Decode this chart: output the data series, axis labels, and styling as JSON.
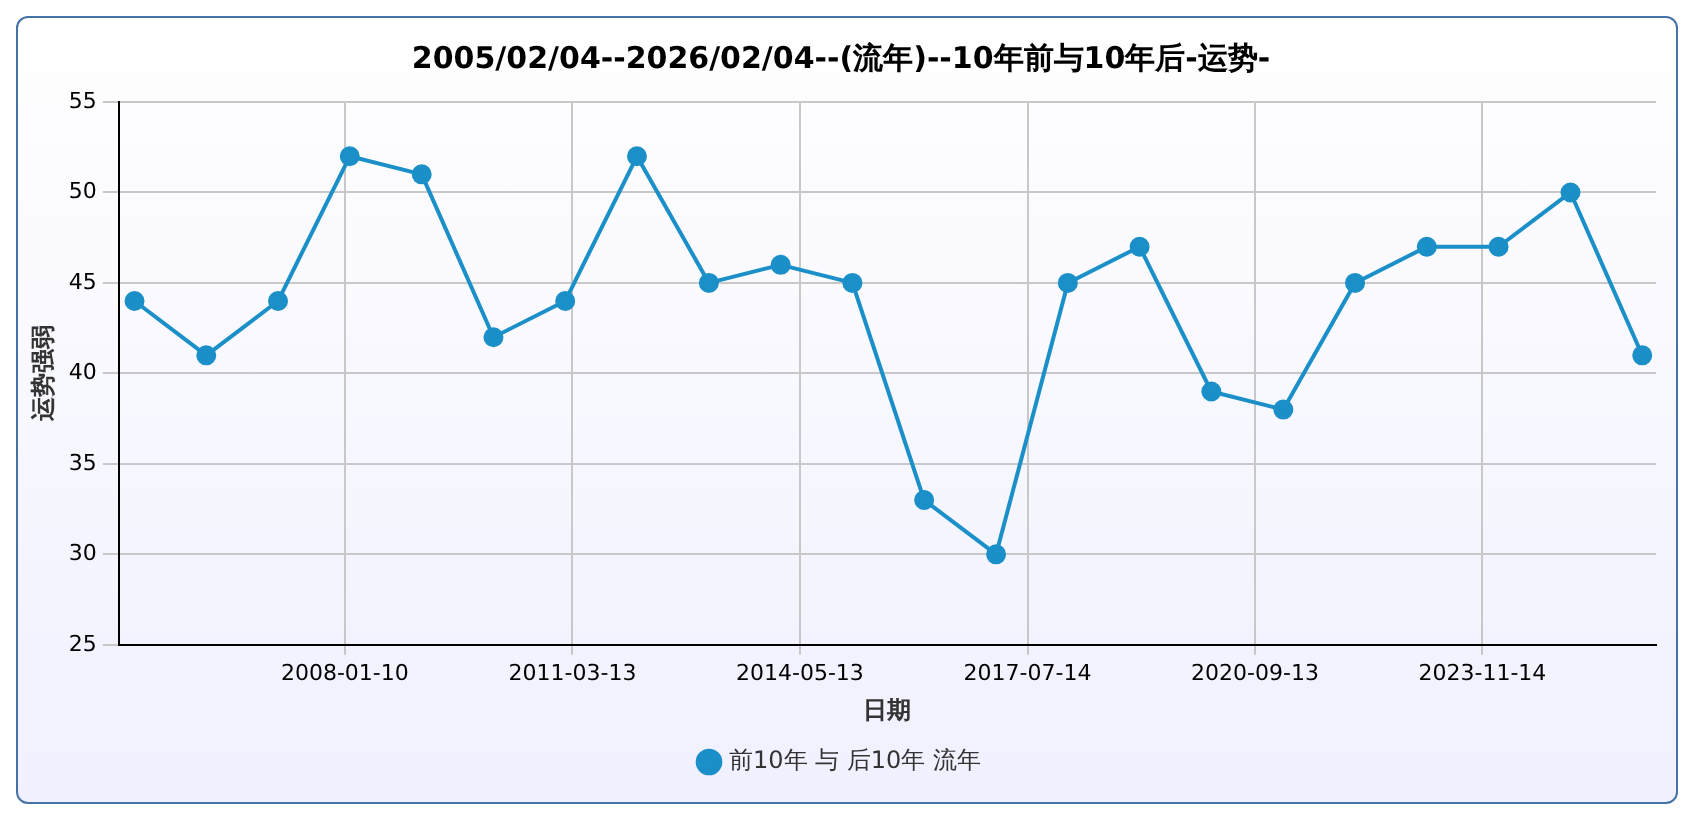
{
  "chart_data": {
    "type": "line",
    "title": "2005/02/04--2026/02/04--(流年)--10年前与10年后-运势-",
    "xlabel": "日期",
    "ylabel": "运势强弱",
    "x": [
      "2005-02-04",
      "2006-02-04",
      "2007-02-04",
      "2008-02-04",
      "2009-02-04",
      "2010-02-04",
      "2011-02-04",
      "2012-02-04",
      "2013-02-04",
      "2014-02-04",
      "2015-02-04",
      "2016-02-04",
      "2017-02-04",
      "2018-02-04",
      "2019-02-04",
      "2020-02-04",
      "2021-02-04",
      "2022-02-04",
      "2023-02-04",
      "2024-02-04",
      "2025-02-04",
      "2026-02-04"
    ],
    "series": [
      {
        "name": "前10年 与 后10年 流年",
        "color": "#1b8fc8",
        "values": [
          44,
          41,
          44,
          52,
          51,
          42,
          44,
          52,
          45,
          46,
          45,
          33,
          30,
          45,
          47,
          39,
          38,
          45,
          47,
          47,
          50,
          41
        ]
      }
    ],
    "xlim": [
      "2004-11-16",
      "2026-04-15"
    ],
    "xticks": [
      {
        "value": "2008-01-10",
        "label": "2008-01-10"
      },
      {
        "value": "2011-03-13",
        "label": "2011-03-13"
      },
      {
        "value": "2014-05-13",
        "label": "2014-05-13"
      },
      {
        "value": "2017-07-14",
        "label": "2017-07-14"
      },
      {
        "value": "2020-09-13",
        "label": "2020-09-13"
      },
      {
        "value": "2023-11-14",
        "label": "2023-11-14"
      }
    ],
    "ylim": [
      25,
      55
    ],
    "yticks": [
      25,
      30,
      35,
      40,
      45,
      50,
      55
    ],
    "grid": true,
    "legend": "bottom",
    "marker": "circle",
    "line_style": "solid"
  }
}
